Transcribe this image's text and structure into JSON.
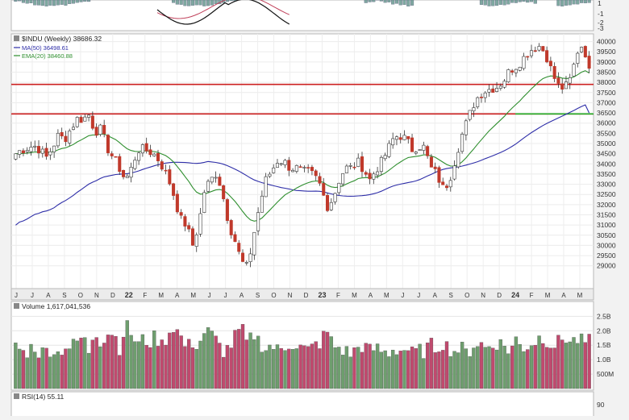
{
  "top_panel": {
    "y_ticks": [
      "1",
      "-1",
      "-2",
      "-3"
    ]
  },
  "price_panel": {
    "legend": {
      "symbol_line": "$INDU (Weekly) 38686.32",
      "ma50_line": "MA(50) 36498.61",
      "ema20_line": "EMA(20) 38460.88"
    },
    "colors": {
      "up": "#5a8a5a",
      "down": "#c0392b",
      "ma50": "#2e2ea8",
      "ema20": "#2f8f2f",
      "red_line": "#cc2020",
      "green_line": "#22aa22"
    }
  },
  "volume_panel": {
    "legend": "Volume 1,617,041,536",
    "y_ticks": [
      "2.5B",
      "2.0B",
      "1.5B",
      "1.0B",
      "500M"
    ],
    "colors": {
      "up": "#6e9e6e",
      "down": "#c04a6e"
    }
  },
  "rsi_panel": {
    "legend": "RSI(14) 55.11",
    "y_ticks": [
      "90"
    ]
  },
  "chart_data": {
    "type": "candlestick",
    "interval": "weekly",
    "ylim": [
      28000,
      40300
    ],
    "y_ticks": [
      "40000",
      "39500",
      "39000",
      "38500",
      "38000",
      "37500",
      "37000",
      "36500",
      "36000",
      "35500",
      "35000",
      "34500",
      "34000",
      "33500",
      "33000",
      "32500",
      "32000",
      "31500",
      "31000",
      "30500",
      "30000",
      "29500",
      "29000"
    ],
    "x_ticks": [
      "J",
      "J",
      "A",
      "S",
      "O",
      "N",
      "D",
      "22",
      "F",
      "M",
      "A",
      "M",
      "J",
      "J",
      "A",
      "S",
      "O",
      "N",
      "D",
      "23",
      "F",
      "M",
      "A",
      "M",
      "J",
      "J",
      "A",
      "S",
      "O",
      "N",
      "D",
      "24",
      "F",
      "M",
      "A",
      "M"
    ],
    "close_path": [
      34500,
      34700,
      34800,
      34900,
      34700,
      34300,
      34800,
      35400,
      35200,
      35700,
      36200,
      36200,
      36400,
      35600,
      35700,
      34800,
      34300,
      33800,
      33200,
      33800,
      34700,
      34700,
      34600,
      34400,
      33900,
      33300,
      32400,
      31300,
      31000,
      30000,
      31000,
      32800,
      33200,
      33600,
      32400,
      31000,
      30200,
      29200,
      28900,
      30500,
      32000,
      33200,
      33700,
      34200,
      34100,
      33800,
      33800,
      33600,
      33600,
      33400,
      32900,
      31900,
      32300,
      33200,
      33800,
      33800,
      34100,
      33800,
      33200,
      33700,
      34100,
      34700,
      35300,
      35400,
      35200,
      34700,
      34900,
      34800,
      33800,
      33500,
      32800,
      33100,
      34200,
      35300,
      36100,
      36900,
      37400,
      37600,
      37700,
      37800,
      38100,
      38600,
      38800,
      39100,
      39500,
      39700,
      39800,
      39300,
      38400,
      37800,
      37700,
      38200,
      39500,
      39900,
      38686
    ],
    "horizontal_lines": [
      {
        "value": 37900,
        "color": "red"
      },
      {
        "value": 36450,
        "color": "red"
      },
      {
        "value": 36450,
        "color": "green",
        "from_x": "24"
      }
    ],
    "ma50_end": 36498.61,
    "ema20_end": 38460.88,
    "volume_ylim": [
      0,
      2.9
    ],
    "volume_unit": "B",
    "volume_path": [
      1.6,
      1.2,
      1.3,
      1.5,
      1.2,
      1.3,
      1.4,
      1.2,
      1.5,
      1.4,
      1.6,
      1.8,
      1.3,
      2.1,
      1.6,
      1.9,
      2.0,
      1.4,
      2.2,
      1.9,
      1.5,
      1.7,
      1.6,
      1.8,
      1.5,
      1.9,
      2.2,
      1.8,
      1.4,
      1.6,
      1.5,
      2.0,
      1.9,
      1.6,
      1.3,
      1.4,
      1.8,
      2.1,
      1.5,
      1.9,
      1.6,
      1.4,
      1.5,
      1.3,
      1.4,
      1.6,
      1.5,
      1.4,
      1.3,
      1.5,
      1.6,
      2.0,
      1.5,
      1.4,
      1.3,
      1.2,
      1.4,
      1.5,
      1.3,
      1.4,
      1.3,
      1.2,
      1.4,
      1.3,
      1.4,
      1.2,
      1.3,
      1.3,
      1.5,
      1.4,
      1.6,
      1.4,
      1.3,
      1.4,
      1.2,
      1.5,
      1.6,
      1.4,
      1.5,
      1.6,
      1.5,
      1.3,
      1.7,
      1.4,
      1.5,
      1.6,
      1.8,
      1.7,
      1.5,
      1.6,
      1.8,
      1.6,
      1.7,
      1.6,
      1.62
    ]
  }
}
